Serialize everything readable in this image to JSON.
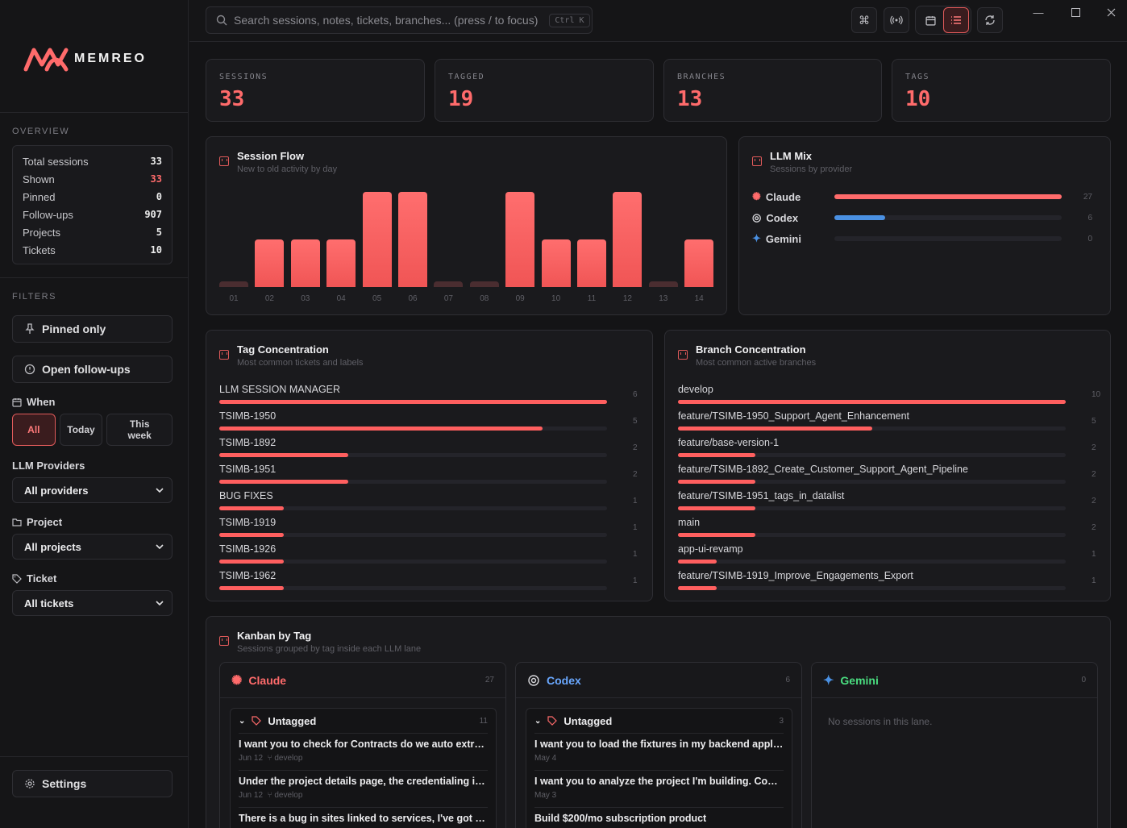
{
  "brand": {
    "name": "MEMREO",
    "accent": "#ff6b6b"
  },
  "search": {
    "placeholder": "Search sessions, notes, tickets, branches...  (press / to focus)",
    "shortcut": "Ctrl K"
  },
  "sidebar": {
    "overview_heading": "OVERVIEW",
    "overview": [
      {
        "label": "Total sessions",
        "value": "33"
      },
      {
        "label": "Shown",
        "value": "33"
      },
      {
        "label": "Pinned",
        "value": "0"
      },
      {
        "label": "Follow-ups",
        "value": "907"
      },
      {
        "label": "Projects",
        "value": "5"
      },
      {
        "label": "Tickets",
        "value": "10"
      }
    ],
    "filters_heading": "FILTERS",
    "pinned_only": "Pinned only",
    "open_followups": "Open follow-ups",
    "when_label": "When",
    "when_options": [
      "All",
      "Today",
      "This week"
    ],
    "llm_label": "LLM Providers",
    "llm_value": "All providers",
    "project_label": "Project",
    "project_value": "All projects",
    "ticket_label": "Ticket",
    "ticket_value": "All tickets",
    "settings": "Settings"
  },
  "stats": [
    {
      "label": "SESSIONS",
      "value": "33"
    },
    {
      "label": "TAGGED",
      "value": "19"
    },
    {
      "label": "BRANCHES",
      "value": "13"
    },
    {
      "label": "TAGS",
      "value": "10"
    }
  ],
  "session_flow": {
    "title": "Session Flow",
    "subtitle": "New to old activity by day",
    "chart_data": {
      "type": "bar",
      "categories": [
        "01",
        "02",
        "03",
        "04",
        "05",
        "06",
        "07",
        "08",
        "09",
        "10",
        "11",
        "12",
        "13",
        "14"
      ],
      "values": [
        0,
        1,
        1,
        1,
        2,
        2,
        0,
        0,
        2,
        1,
        1,
        2,
        0,
        1
      ]
    }
  },
  "llm_mix": {
    "title": "LLM Mix",
    "subtitle": "Sessions by provider",
    "chart_data": {
      "type": "bar",
      "categories": [
        "Claude",
        "Codex",
        "Gemini"
      ],
      "values": [
        27,
        6,
        0
      ],
      "max": 27
    },
    "colors": [
      "#ff6b6b",
      "#4a90e2",
      "#3a6fd8"
    ]
  },
  "tags": {
    "title": "Tag Concentration",
    "subtitle": "Most common tickets and labels",
    "chart_data": {
      "type": "bar",
      "categories": [
        "LLM SESSION MANAGER",
        "TSIMB-1950",
        "TSIMB-1892",
        "TSIMB-1951",
        "BUG FIXES",
        "TSIMB-1919",
        "TSIMB-1926",
        "TSIMB-1962"
      ],
      "values": [
        6,
        5,
        2,
        2,
        1,
        1,
        1,
        1
      ],
      "max": 6
    }
  },
  "branches": {
    "title": "Branch Concentration",
    "subtitle": "Most common active branches",
    "chart_data": {
      "type": "bar",
      "categories": [
        "develop",
        "feature/TSIMB-1950_Support_Agent_Enhancement",
        "feature/base-version-1",
        "feature/TSIMB-1892_Create_Customer_Support_Agent_Pipeline",
        "feature/TSIMB-1951_tags_in_datalist",
        "main",
        "app-ui-revamp",
        "feature/TSIMB-1919_Improve_Engagements_Export"
      ],
      "values": [
        10,
        5,
        2,
        2,
        2,
        2,
        1,
        1
      ],
      "max": 10
    }
  },
  "kanban": {
    "title": "Kanban by Tag",
    "subtitle": "Sessions grouped by tag inside each LLM lane",
    "lanes": [
      {
        "name": "Claude",
        "count": "27",
        "color": "#ff6b6b",
        "group": "Untagged",
        "group_count": "11",
        "items": [
          {
            "title": "I want you to check for Contracts do we auto extract the...",
            "date": "Jun 12",
            "branch": "develop"
          },
          {
            "title": "Under the project details page, the credentialing is not...",
            "date": "Jun 12",
            "branch": "develop"
          },
          {
            "title": "There is a bug in sites linked to services, I've got an error...",
            "date": "",
            "branch": ""
          }
        ]
      },
      {
        "name": "Codex",
        "count": "6",
        "color": "#6aa8ff",
        "group": "Untagged",
        "group_count": "3",
        "items": [
          {
            "title": "I want you to load the fixtures in my backend application...",
            "date": "May 4",
            "branch": ""
          },
          {
            "title": "I want you to analyze the project I'm building. Code ...",
            "date": "May 3",
            "branch": ""
          },
          {
            "title": "Build $200/mo subscription product",
            "date": "",
            "branch": ""
          }
        ]
      },
      {
        "name": "Gemini",
        "count": "0",
        "color": "#4ade80",
        "empty": "No sessions in this lane."
      }
    ]
  }
}
